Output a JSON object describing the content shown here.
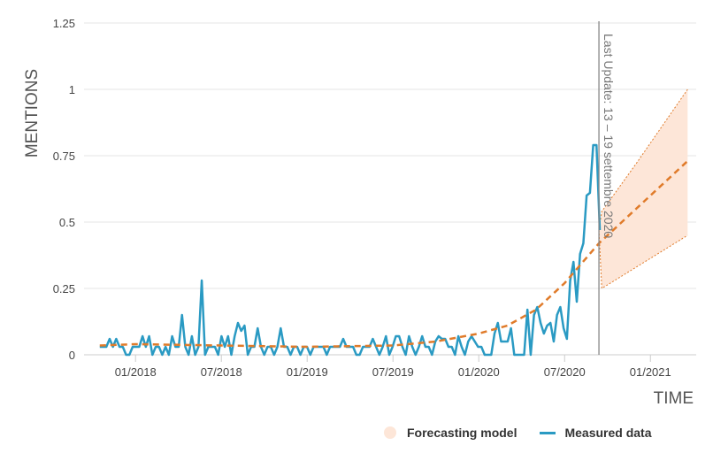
{
  "chart_data": {
    "type": "line",
    "ylabel": "MENTIONS",
    "xlabel": "TIME",
    "ylim": [
      0,
      1.25
    ],
    "y_ticks": [
      "0",
      "0.25",
      "0.5",
      "0.75",
      "1",
      "1.25"
    ],
    "y_tick_values": [
      0,
      0.25,
      0.5,
      0.75,
      1,
      1.25
    ],
    "x_unit": "months since 01/2018",
    "xlim": [
      -3.6,
      39.2
    ],
    "x_ticks": [
      "01/2018",
      "07/2018",
      "01/2019",
      "07/2019",
      "01/2020",
      "07/2020",
      "01/2021"
    ],
    "x_tick_values": [
      0,
      6,
      12,
      18,
      24,
      30,
      36
    ],
    "grid": true,
    "annotation": {
      "text": "Last Update: 13 – 19 settembre 2020",
      "x": 32.4
    },
    "legend": {
      "placement": "bottom-right",
      "entries": [
        "Forecasting model",
        "Measured data"
      ]
    },
    "colors": {
      "measured": "#2a9ac3",
      "forecast": "#e07b2a",
      "band": "#fde6d8",
      "grid": "#e6e6e6"
    },
    "series": [
      {
        "name": "Measured data",
        "x_start": -2.5,
        "x_step": 0.23,
        "values": [
          0.03,
          0.03,
          0.03,
          0.06,
          0.03,
          0.06,
          0.03,
          0.03,
          0,
          0,
          0.03,
          0.03,
          0.03,
          0.07,
          0.03,
          0.07,
          0,
          0.03,
          0.03,
          0,
          0.03,
          0,
          0.07,
          0.03,
          0.03,
          0.15,
          0.03,
          0,
          0.07,
          0,
          0.03,
          0.28,
          0,
          0.03,
          0.03,
          0.03,
          0,
          0.07,
          0.03,
          0.07,
          0,
          0.07,
          0.12,
          0.09,
          0.11,
          0,
          0.03,
          0.03,
          0.1,
          0.03,
          0,
          0.03,
          0.03,
          0,
          0.03,
          0.1,
          0.03,
          0.03,
          0,
          0.03,
          0.03,
          0,
          0.03,
          0.03,
          0,
          0.03,
          0.03,
          0.03,
          0.03,
          0,
          0.03,
          0.03,
          0.03,
          0.03,
          0.06,
          0.03,
          0.03,
          0.03,
          0,
          0,
          0.03,
          0.03,
          0.03,
          0.06,
          0.03,
          0,
          0.03,
          0.07,
          0,
          0.03,
          0.07,
          0.07,
          0.03,
          0,
          0.07,
          0.03,
          0,
          0.03,
          0.07,
          0.03,
          0.03,
          0,
          0.05,
          0.07,
          0.06,
          0.06,
          0.03,
          0.03,
          0,
          0.07,
          0.03,
          0,
          0.05,
          0.07,
          0.05,
          0.03,
          0.03,
          0,
          0,
          0,
          0.08,
          0.12,
          0.05,
          0.05,
          0.05,
          0.1,
          0,
          0,
          0,
          0,
          0.17,
          0,
          0.15,
          0.18,
          0.12,
          0.08,
          0.11,
          0.12,
          0.05,
          0.15,
          0.18,
          0.1,
          0.06,
          0.28,
          0.35,
          0.2,
          0.38,
          0.42,
          0.6,
          0.61,
          0.79,
          0.79,
          0.47
        ]
      },
      {
        "name": "Forecasting model",
        "x": [
          -2.5,
          0,
          6,
          12,
          18,
          21,
          24,
          26,
          28,
          30,
          32.4,
          35,
          38.6
        ],
        "values": [
          0.035,
          0.04,
          0.035,
          0.03,
          0.035,
          0.05,
          0.08,
          0.11,
          0.17,
          0.27,
          0.42,
          0.55,
          0.73
        ],
        "band_x": [
          32.4,
          32.6,
          35,
          38.6
        ],
        "band_lower": [
          0.47,
          0.25,
          0.33,
          0.45
        ],
        "band_upper": [
          0.47,
          0.54,
          0.72,
          1.0
        ]
      }
    ]
  }
}
